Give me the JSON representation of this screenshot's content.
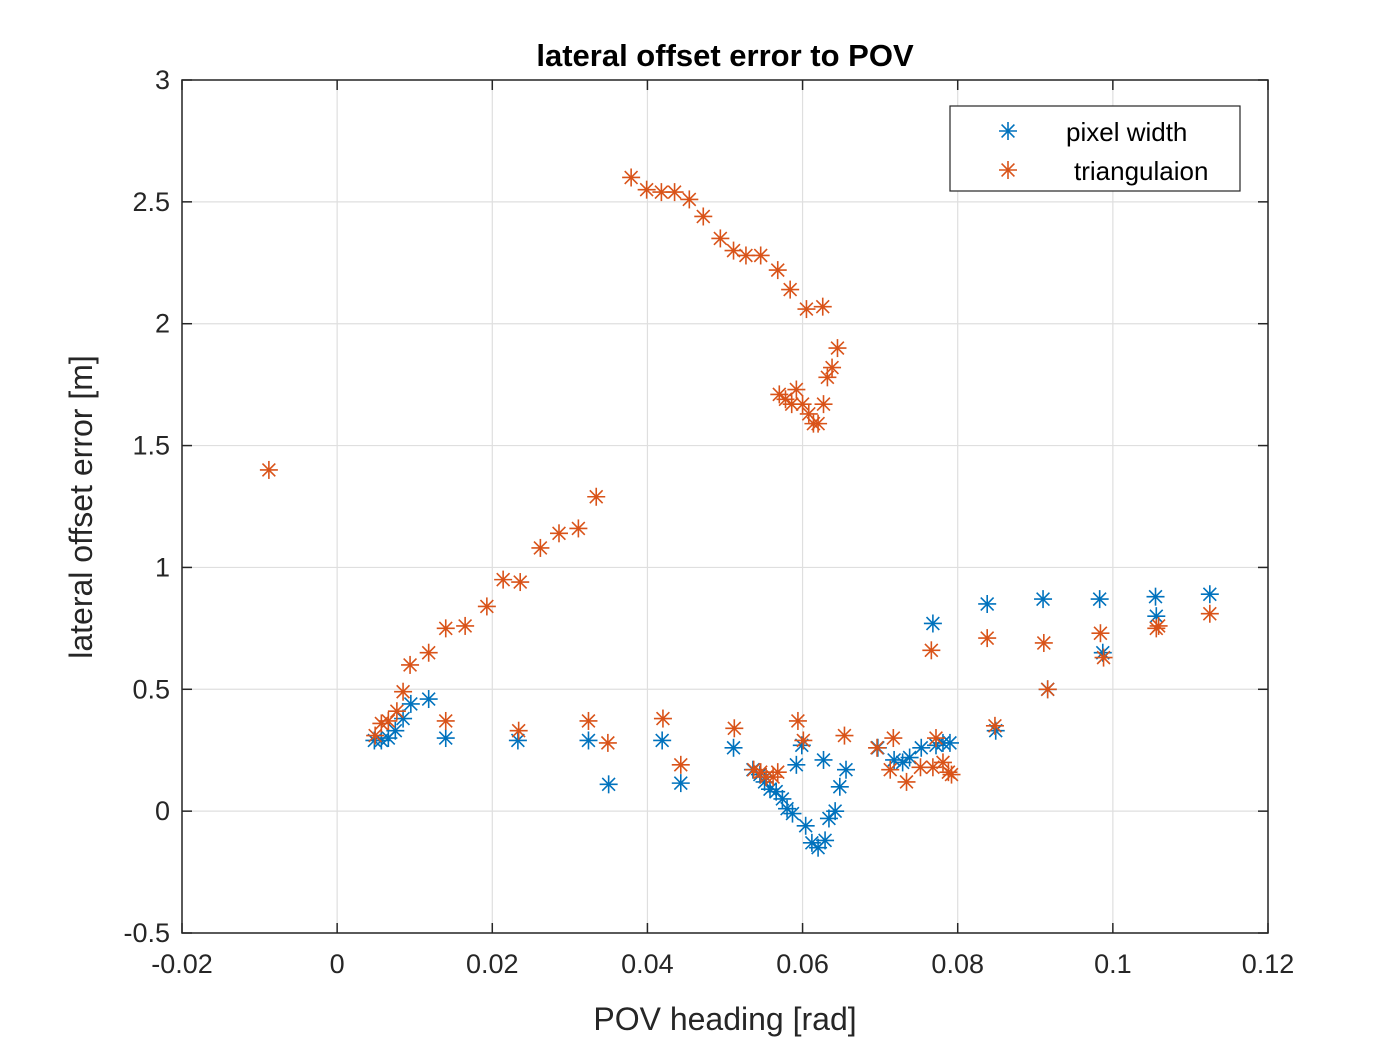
{
  "chart_data": {
    "type": "scatter",
    "title": "lateral offset error to POV",
    "xlabel": "POV heading [rad]",
    "ylabel": "lateral offset error [m]",
    "xlim": [
      -0.02,
      0.12
    ],
    "ylim": [
      -0.5,
      3
    ],
    "xticks": [
      -0.02,
      0,
      0.02,
      0.04,
      0.06,
      0.08,
      0.1,
      0.12
    ],
    "xtick_labels": [
      "-0.02",
      "0",
      "0.02",
      "0.04",
      "0.06",
      "0.08",
      "0.1",
      "0.12"
    ],
    "yticks": [
      -0.5,
      0,
      0.5,
      1,
      1.5,
      2,
      2.5,
      3
    ],
    "ytick_labels": [
      "-0.5",
      "0",
      "0.5",
      "1",
      "1.5",
      "2",
      "2.5",
      "3"
    ],
    "grid": true,
    "legend": "top-right",
    "marker": "asterisk",
    "series": [
      {
        "name": "pixel width",
        "color": "#0072bd",
        "points": [
          [
            0.0048,
            0.29
          ],
          [
            0.0057,
            0.29
          ],
          [
            0.0066,
            0.3
          ],
          [
            0.0075,
            0.33
          ],
          [
            0.0085,
            0.38
          ],
          [
            0.0095,
            0.44
          ],
          [
            0.0118,
            0.46
          ],
          [
            0.014,
            0.3
          ],
          [
            0.0233,
            0.29
          ],
          [
            0.0324,
            0.29
          ],
          [
            0.035,
            0.11
          ],
          [
            0.0419,
            0.29
          ],
          [
            0.0443,
            0.115
          ],
          [
            0.0511,
            0.26
          ],
          [
            0.0536,
            0.17
          ],
          [
            0.0545,
            0.15
          ],
          [
            0.0551,
            0.12
          ],
          [
            0.0558,
            0.09
          ],
          [
            0.0566,
            0.08
          ],
          [
            0.0574,
            0.05
          ],
          [
            0.058,
            0.01
          ],
          [
            0.0587,
            -0.01
          ],
          [
            0.0592,
            0.19
          ],
          [
            0.0599,
            0.27
          ],
          [
            0.0604,
            -0.06
          ],
          [
            0.0612,
            -0.13
          ],
          [
            0.062,
            -0.15
          ],
          [
            0.0627,
            0.21
          ],
          [
            0.0629,
            -0.12
          ],
          [
            0.0634,
            -0.03
          ],
          [
            0.0642,
            0.0
          ],
          [
            0.0648,
            0.1
          ],
          [
            0.0656,
            0.17
          ],
          [
            0.0697,
            0.26
          ],
          [
            0.0718,
            0.21
          ],
          [
            0.0729,
            0.2
          ],
          [
            0.0738,
            0.22
          ],
          [
            0.0753,
            0.26
          ],
          [
            0.0768,
            0.77
          ],
          [
            0.0772,
            0.27
          ],
          [
            0.0781,
            0.28
          ],
          [
            0.079,
            0.28
          ],
          [
            0.0838,
            0.85
          ],
          [
            0.0849,
            0.33
          ],
          [
            0.091,
            0.87
          ],
          [
            0.0916,
            0.5
          ],
          [
            0.0983,
            0.87
          ],
          [
            0.0987,
            0.65
          ],
          [
            0.1055,
            0.88
          ],
          [
            0.1056,
            0.8
          ],
          [
            0.1125,
            0.89
          ]
        ]
      },
      {
        "name": "triangulaion",
        "color": "#d95319",
        "points": [
          [
            -0.0088,
            1.4
          ],
          [
            0.0049,
            0.31
          ],
          [
            0.0057,
            0.36
          ],
          [
            0.0066,
            0.37
          ],
          [
            0.0077,
            0.41
          ],
          [
            0.0085,
            0.49
          ],
          [
            0.0094,
            0.6
          ],
          [
            0.0118,
            0.65
          ],
          [
            0.014,
            0.75
          ],
          [
            0.014,
            0.37
          ],
          [
            0.0165,
            0.76
          ],
          [
            0.0193,
            0.84
          ],
          [
            0.0214,
            0.95
          ],
          [
            0.0236,
            0.94
          ],
          [
            0.0234,
            0.33
          ],
          [
            0.0262,
            1.08
          ],
          [
            0.0286,
            1.14
          ],
          [
            0.0311,
            1.16
          ],
          [
            0.0324,
            0.37
          ],
          [
            0.0334,
            1.29
          ],
          [
            0.0349,
            0.28
          ],
          [
            0.0379,
            2.6
          ],
          [
            0.0399,
            2.55
          ],
          [
            0.0418,
            2.54
          ],
          [
            0.042,
            0.38
          ],
          [
            0.0435,
            2.54
          ],
          [
            0.0443,
            0.19
          ],
          [
            0.0454,
            2.51
          ],
          [
            0.0472,
            2.44
          ],
          [
            0.0494,
            2.35
          ],
          [
            0.0511,
            2.3
          ],
          [
            0.0512,
            0.34
          ],
          [
            0.0527,
            2.28
          ],
          [
            0.0546,
            2.28
          ],
          [
            0.0537,
            0.17
          ],
          [
            0.0546,
            0.16
          ],
          [
            0.0553,
            0.14
          ],
          [
            0.0562,
            0.14
          ],
          [
            0.0568,
            0.16
          ],
          [
            0.0568,
            2.22
          ],
          [
            0.057,
            1.71
          ],
          [
            0.0578,
            1.69
          ],
          [
            0.0584,
            2.14
          ],
          [
            0.0586,
            1.67
          ],
          [
            0.0592,
            1.73
          ],
          [
            0.0594,
            0.37
          ],
          [
            0.06,
            1.67
          ],
          [
            0.0601,
            0.29
          ],
          [
            0.0605,
            2.06
          ],
          [
            0.0608,
            1.63
          ],
          [
            0.0614,
            1.59
          ],
          [
            0.062,
            1.59
          ],
          [
            0.0626,
            2.07
          ],
          [
            0.0627,
            1.67
          ],
          [
            0.0632,
            1.78
          ],
          [
            0.0638,
            1.82
          ],
          [
            0.0645,
            1.9
          ],
          [
            0.0654,
            0.31
          ],
          [
            0.0696,
            0.26
          ],
          [
            0.0713,
            0.17
          ],
          [
            0.0717,
            0.3
          ],
          [
            0.0734,
            0.12
          ],
          [
            0.0752,
            0.18
          ],
          [
            0.0766,
            0.66
          ],
          [
            0.0768,
            0.18
          ],
          [
            0.0772,
            0.3
          ],
          [
            0.0781,
            0.2
          ],
          [
            0.0788,
            0.16
          ],
          [
            0.0792,
            0.15
          ],
          [
            0.0838,
            0.71
          ],
          [
            0.0848,
            0.35
          ],
          [
            0.0911,
            0.69
          ],
          [
            0.0916,
            0.5
          ],
          [
            0.0984,
            0.73
          ],
          [
            0.0988,
            0.63
          ],
          [
            0.1056,
            0.75
          ],
          [
            0.1059,
            0.76
          ],
          [
            0.1125,
            0.81
          ]
        ]
      }
    ]
  }
}
